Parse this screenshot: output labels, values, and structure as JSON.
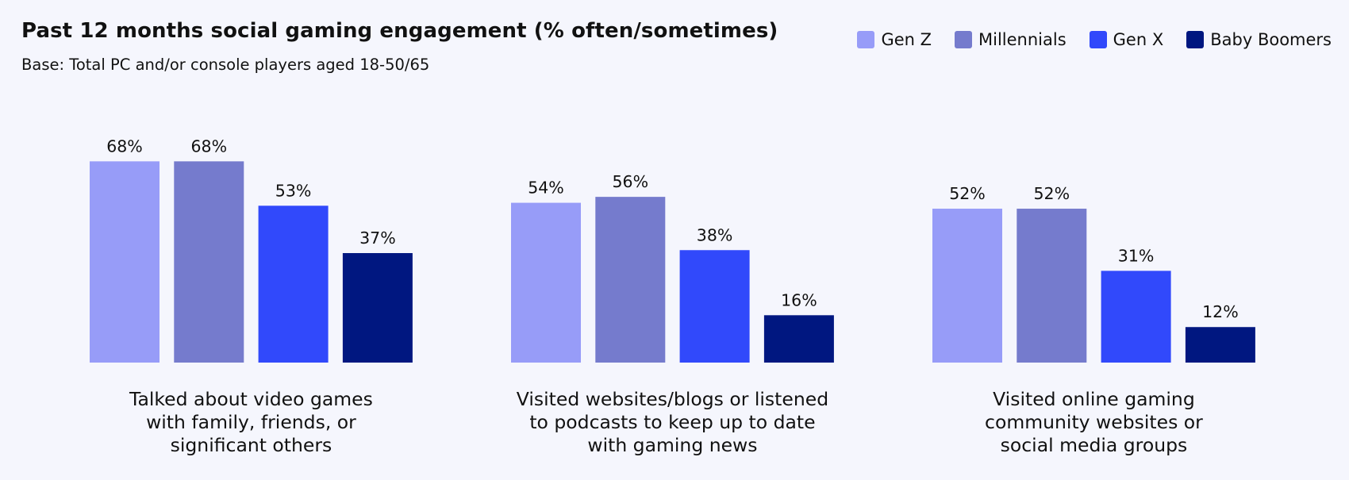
{
  "chart_data": {
    "type": "bar",
    "title": "Past 12 months social gaming engagement (% often/sometimes)",
    "subtitle": "Base: Total PC and/or console players aged 18-50/65",
    "categories": [
      [
        "Talked about video games",
        "with family, friends, or",
        "significant others"
      ],
      [
        "Visited websites/blogs or listened",
        "to podcasts to keep up to date",
        "with gaming news"
      ],
      [
        "Visited online gaming",
        "community websites or",
        "social media groups"
      ]
    ],
    "series": [
      {
        "name": "Gen Z",
        "color": "#979cf8",
        "values": [
          68,
          54,
          52
        ]
      },
      {
        "name": "Millennials",
        "color": "#757bcd",
        "values": [
          68,
          56,
          52
        ]
      },
      {
        "name": "Gen X",
        "color": "#3149fb",
        "values": [
          53,
          38,
          31
        ]
      },
      {
        "name": "Baby Boomers",
        "color": "#001780",
        "values": [
          37,
          16,
          12
        ]
      }
    ],
    "value_suffix": "%",
    "ylim": [
      0,
      100
    ],
    "grid": false,
    "legend_position": "top-right"
  }
}
